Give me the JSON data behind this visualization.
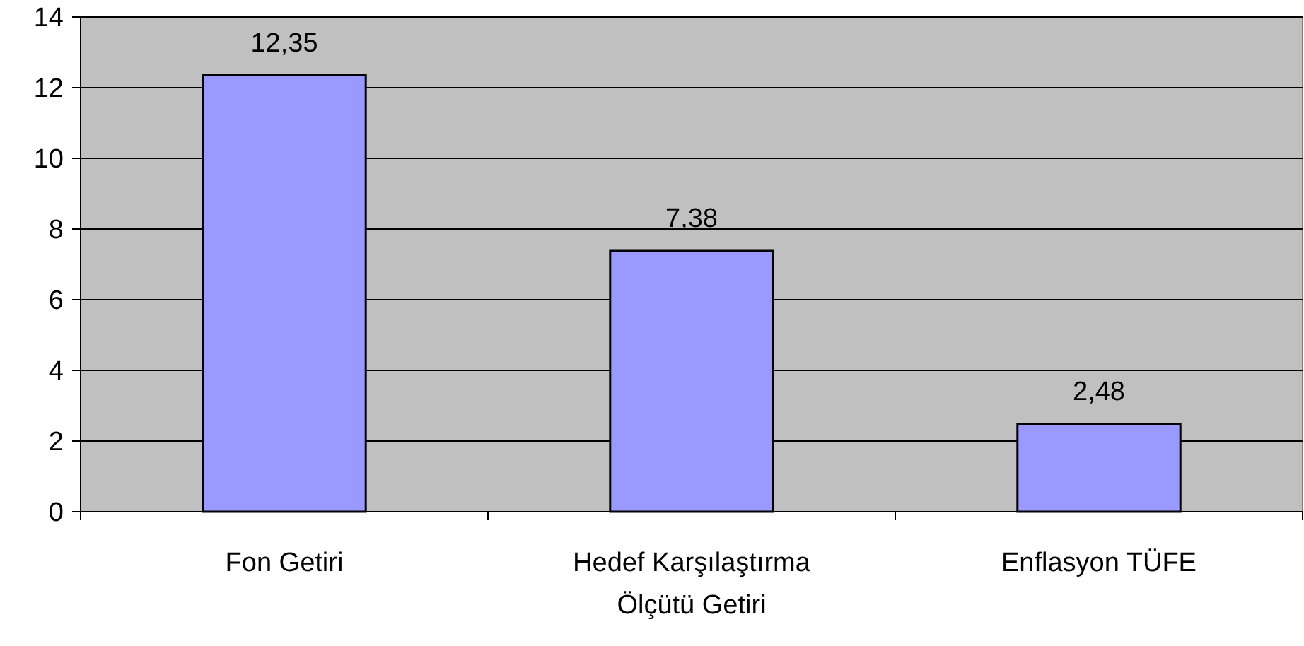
{
  "chart_data": {
    "type": "bar",
    "categories": [
      "Fon Getiri",
      "Hedef Karşılaştırma Ölçütü Getiri",
      "Enflasyon TÜFE"
    ],
    "values": [
      12.35,
      7.38,
      2.48
    ],
    "value_labels": [
      "12,35",
      "7,38",
      "2,48"
    ],
    "color": "#9999ff",
    "ylim": [
      0,
      14
    ],
    "yticks": [
      0,
      2,
      4,
      6,
      8,
      10,
      12,
      14
    ],
    "grid": "y"
  }
}
